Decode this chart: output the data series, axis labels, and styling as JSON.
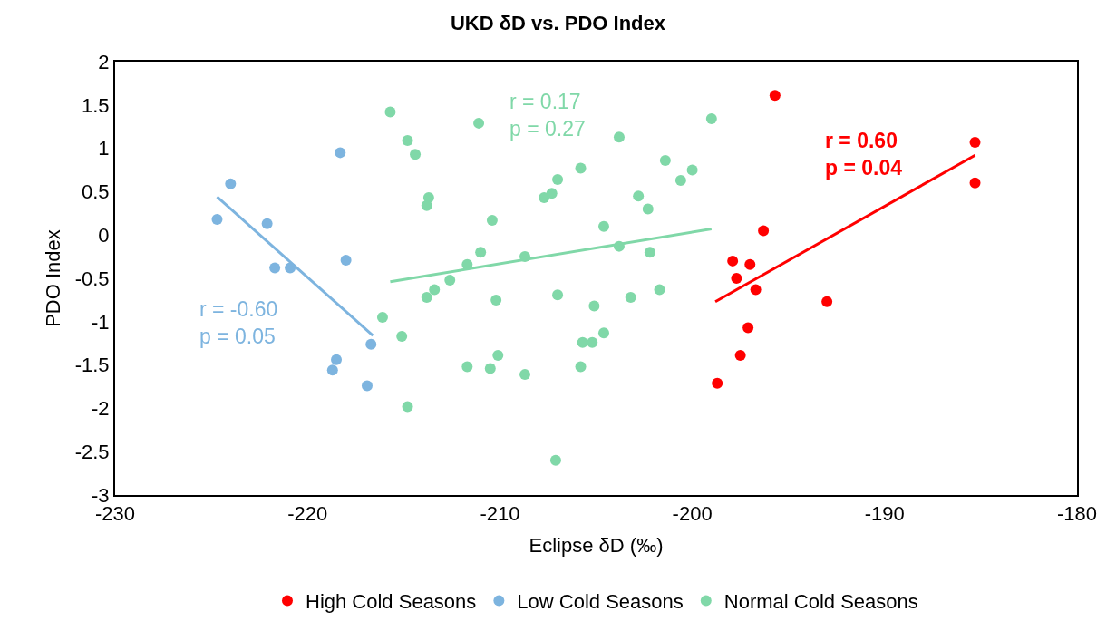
{
  "chart_data": {
    "type": "scatter",
    "title": "UKD δD vs. PDO Index",
    "xlabel": "Eclipse δD (‰)",
    "ylabel": "PDO Index",
    "xlim": [
      -230,
      -180
    ],
    "xticks": [
      -230,
      -220,
      -210,
      -200,
      -190,
      -180
    ],
    "ylim": [
      -3,
      2
    ],
    "yticks": [
      -3,
      -2.5,
      -2,
      -1.5,
      -1,
      -0.5,
      0,
      0.5,
      1,
      1.5,
      2
    ],
    "legend": "bottom",
    "marker": "circle",
    "series": [
      {
        "name": "High Cold Seasons",
        "color": "#ff0000",
        "x": [
          -195.7,
          -185.3,
          -185.3,
          -196.3,
          -197.9,
          -197.0,
          -197.7,
          -196.7,
          -193.0,
          -197.1,
          -197.5,
          -198.7
        ],
        "values": [
          1.61,
          1.07,
          0.6,
          0.05,
          -0.3,
          -0.34,
          -0.5,
          -0.63,
          -0.77,
          -1.07,
          -1.39,
          -1.71
        ]
      },
      {
        "name": "Low Cold Seasons",
        "color": "#7db4df",
        "x": [
          -224.7,
          -224.0,
          -222.1,
          -221.7,
          -220.9,
          -218.3,
          -218.0,
          -218.5,
          -218.7,
          -216.7,
          -216.9
        ],
        "values": [
          0.18,
          0.59,
          0.13,
          -0.38,
          -0.38,
          0.95,
          -0.29,
          -1.44,
          -1.56,
          -1.26,
          -1.74
        ]
      },
      {
        "name": "Normal Cold Seasons",
        "color": "#80d8a8",
        "x": [
          -215.7,
          -214.8,
          -214.4,
          -213.7,
          -213.8,
          -216.1,
          -215.1,
          -214.8,
          -213.8,
          -213.4,
          -211.1,
          -210.4,
          -211.0,
          -211.7,
          -212.6,
          -210.2,
          -211.7,
          -210.5,
          -210.1,
          -208.7,
          -208.7,
          -207.7,
          -207.3,
          -207.0,
          -207.0,
          -207.1,
          -205.8,
          -205.7,
          -205.2,
          -205.1,
          -204.6,
          -205.8,
          -204.6,
          -203.8,
          -203.8,
          -203.2,
          -202.8,
          -202.3,
          -202.2,
          -201.7,
          -201.4,
          -200.6,
          -200.0,
          -199.0
        ],
        "values": [
          1.42,
          1.09,
          0.93,
          0.43,
          0.34,
          -0.95,
          -1.17,
          -1.98,
          -0.72,
          -0.63,
          1.29,
          0.17,
          -0.2,
          -0.34,
          -0.52,
          -0.75,
          -1.52,
          -1.54,
          -1.39,
          -0.25,
          -1.61,
          0.43,
          0.48,
          0.64,
          -0.69,
          -2.6,
          0.77,
          -1.24,
          -1.24,
          -0.82,
          -1.13,
          -1.52,
          0.1,
          1.13,
          -0.13,
          -0.72,
          0.45,
          0.3,
          -0.2,
          -0.63,
          0.86,
          0.63,
          0.75,
          1.34
        ]
      },
      {
        "type": "line",
        "marker": "none",
        "color": "#ff0000",
        "x": [
          -198.8,
          -185.3
        ],
        "values": [
          -0.77,
          0.92
        ]
      },
      {
        "type": "line",
        "marker": "none",
        "color": "#7db4df",
        "x": [
          -224.7,
          -216.6
        ],
        "values": [
          0.44,
          -1.16
        ]
      },
      {
        "type": "line",
        "marker": "none",
        "color": "#80d8a8",
        "x": [
          -215.7,
          -199.0
        ],
        "values": [
          -0.54,
          0.07
        ]
      }
    ],
    "annotations": [
      "r = 0.60\np = 0.04",
      "r = -0.60\np = 0.05",
      "r = 0.17\np = 0.27"
    ]
  }
}
